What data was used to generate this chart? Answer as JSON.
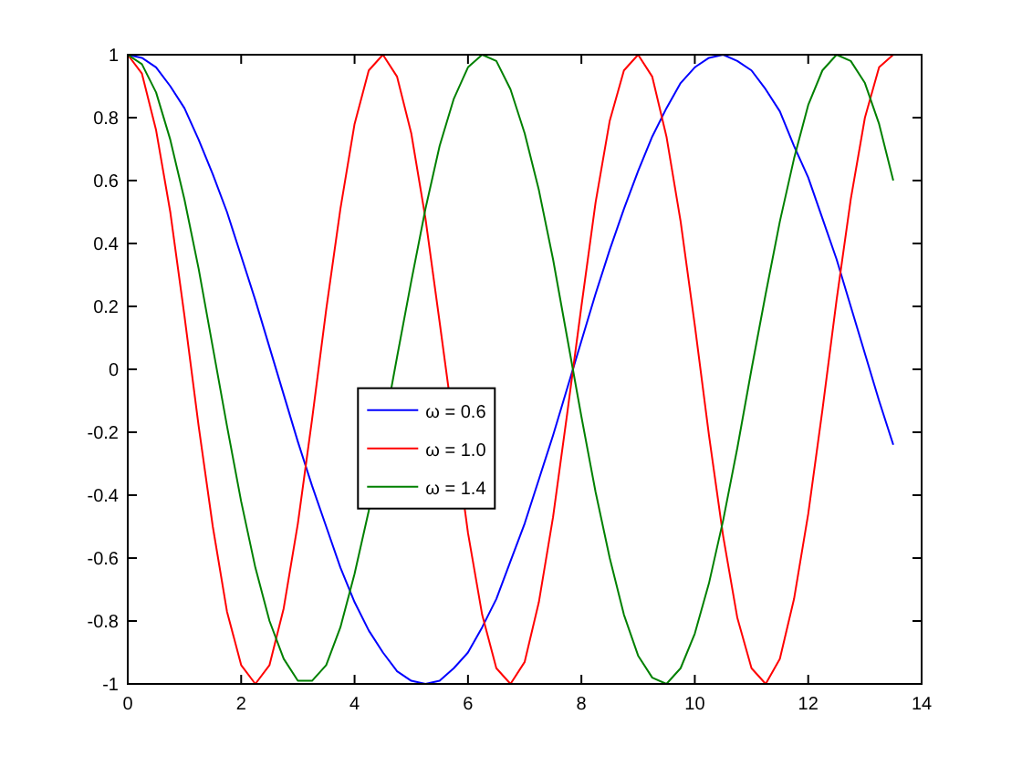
{
  "chart_data": {
    "type": "line",
    "x": [
      0,
      0.25,
      0.5,
      0.75,
      1,
      1.25,
      1.5,
      1.75,
      2,
      2.25,
      2.5,
      2.75,
      3,
      3.25,
      3.5,
      3.75,
      4,
      4.25,
      4.5,
      4.75,
      5,
      5.25,
      5.5,
      5.75,
      6,
      6.25,
      6.5,
      6.75,
      7,
      7.25,
      7.5,
      7.75,
      8,
      8.25,
      8.5,
      8.75,
      9,
      9.25,
      9.5,
      9.75,
      10,
      10.25,
      10.5,
      10.75,
      11,
      11.25,
      11.5,
      11.75,
      12,
      12.25,
      12.5,
      12.75,
      13,
      13.25,
      13.5
    ],
    "series": [
      {
        "name": "ω = 0.6",
        "color": "#0000ff",
        "values": [
          1,
          0.99,
          0.96,
          0.9,
          0.83,
          0.73,
          0.62,
          0.5,
          0.36,
          0.22,
          0.07,
          -0.08,
          -0.23,
          -0.37,
          -0.5,
          -0.63,
          -0.74,
          -0.83,
          -0.9,
          -0.96,
          -0.99,
          -1,
          -0.99,
          -0.95,
          -0.9,
          -0.82,
          -0.73,
          -0.61,
          -0.49,
          -0.35,
          -0.21,
          -0.06,
          0.09,
          0.24,
          0.38,
          0.51,
          0.63,
          0.74,
          0.83,
          0.91,
          0.96,
          0.99,
          1,
          0.98,
          0.95,
          0.89,
          0.82,
          0.71,
          0.61,
          0.48,
          0.35,
          0.2,
          0.05,
          -0.1,
          -0.24
        ]
      },
      {
        "name": "ω = 1.0",
        "color": "#ff0000",
        "values": [
          1,
          0.94,
          0.76,
          0.5,
          0.17,
          -0.18,
          -0.5,
          -0.77,
          -0.94,
          -1,
          -0.94,
          -0.76,
          -0.49,
          -0.16,
          0.19,
          0.51,
          0.78,
          0.95,
          1,
          0.93,
          0.75,
          0.48,
          0.15,
          null,
          -0.52,
          -0.78,
          -0.95,
          -1,
          -0.93,
          -0.74,
          -0.47,
          -0.14,
          0.2,
          0.53,
          0.79,
          0.95,
          1,
          0.93,
          0.74,
          0.47,
          0.14,
          -0.21,
          -0.53,
          -0.79,
          -0.95,
          -1,
          -0.92,
          -0.73,
          -0.46,
          -0.13,
          0.22,
          0.54,
          0.8,
          0.96,
          1
        ]
      },
      {
        "name": "ω = 1.4",
        "color": "#008000",
        "values": [
          1,
          0.97,
          0.88,
          0.73,
          0.54,
          0.32,
          0.07,
          -0.18,
          -0.42,
          -0.63,
          -0.8,
          -0.92,
          -0.99,
          -0.99,
          -0.94,
          -0.82,
          -0.65,
          -0.45,
          null,
          0.04,
          0.28,
          0.51,
          0.71,
          0.86,
          0.96,
          1,
          0.98,
          0.89,
          0.75,
          0.57,
          0.35,
          0.1,
          -0.15,
          -0.39,
          -0.6,
          -0.78,
          -0.91,
          -0.98,
          -1,
          -0.95,
          -0.84,
          -0.68,
          -0.48,
          -0.25,
          0,
          0.24,
          0.47,
          0.67,
          0.84,
          0.95,
          1,
          0.98,
          0.91,
          0.78,
          0.6
        ]
      }
    ],
    "xlim": [
      0,
      14
    ],
    "xticks": [
      0,
      2,
      4,
      6,
      8,
      10,
      12,
      14
    ],
    "ylim": [
      -1,
      1
    ],
    "yticks": [
      -1,
      -0.8,
      -0.6,
      -0.4,
      -0.2,
      0,
      0.2,
      0.4,
      0.6,
      0.8,
      1
    ],
    "grid": false,
    "legend": "center",
    "marker": "none",
    "line_style": "solid"
  }
}
